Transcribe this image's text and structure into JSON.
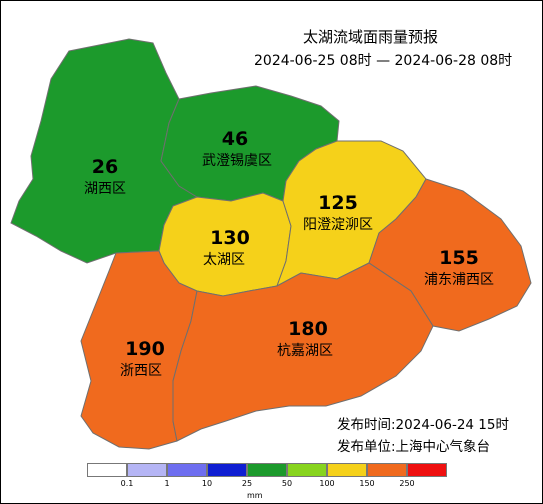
{
  "title": "太湖流域面雨量预报",
  "period": "2024-06-25 08时 — 2024-06-28 08时",
  "issue_time": "发布时间:2024-06-24 15时",
  "issuer": "发布单位:上海中心气象台",
  "regions": [
    {
      "id": "huxi",
      "name": "湖西区",
      "value": "26",
      "color": "#1c9a2c"
    },
    {
      "id": "wucheng",
      "name": "武澄锡虞区",
      "value": "46",
      "color": "#1c9a2c"
    },
    {
      "id": "taihu",
      "name": "太湖区",
      "value": "130",
      "color": "#f5d11a"
    },
    {
      "id": "yangcheng",
      "name": "阳澄淀泖区",
      "value": "125",
      "color": "#f5d11a"
    },
    {
      "id": "pudong",
      "name": "浦东浦西区",
      "value": "155",
      "color": "#f06a1e"
    },
    {
      "id": "zhexi",
      "name": "浙西区",
      "value": "190",
      "color": "#f06a1e"
    },
    {
      "id": "hangjia",
      "name": "杭嘉湖区",
      "value": "180",
      "color": "#f06a1e"
    }
  ],
  "legend": {
    "colors": [
      "#ffffff",
      "#b5b5f5",
      "#6e6ef0",
      "#0f1ed2",
      "#1c9a2c",
      "#88d41e",
      "#f5d11a",
      "#f06a1e",
      "#ef1010"
    ],
    "ticks": [
      "0.1",
      "1",
      "10",
      "25",
      "50",
      "100",
      "150",
      "250"
    ],
    "unit": "mm"
  }
}
